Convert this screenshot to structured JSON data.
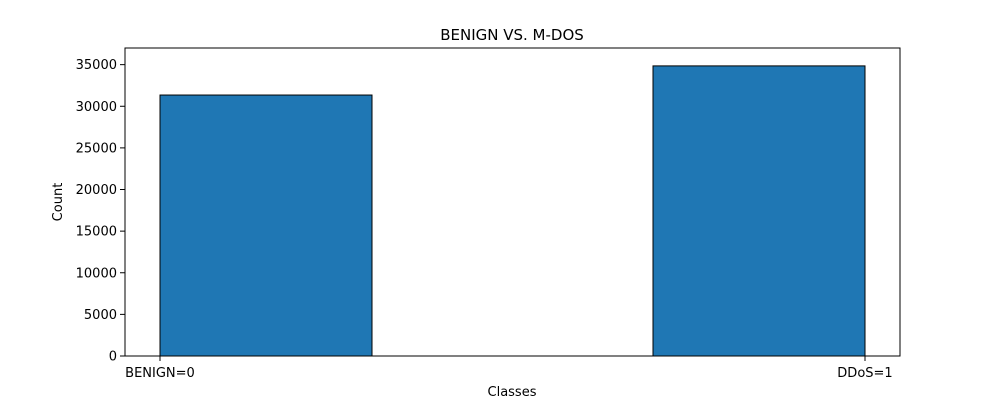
{
  "chart_data": {
    "type": "bar",
    "title": "BENIGN VS. M-DOS",
    "xlabel": "Classes",
    "ylabel": "Count",
    "categories": [
      "BENIGN=0",
      "DDoS=1"
    ],
    "values": [
      31350,
      34850
    ],
    "ylim": [
      0,
      37000
    ],
    "yticks": [
      0,
      5000,
      10000,
      15000,
      20000,
      25000,
      30000,
      35000
    ],
    "bar_color": "#1f77b4",
    "edge_color": "#000000",
    "grid": false,
    "legend": false
  }
}
